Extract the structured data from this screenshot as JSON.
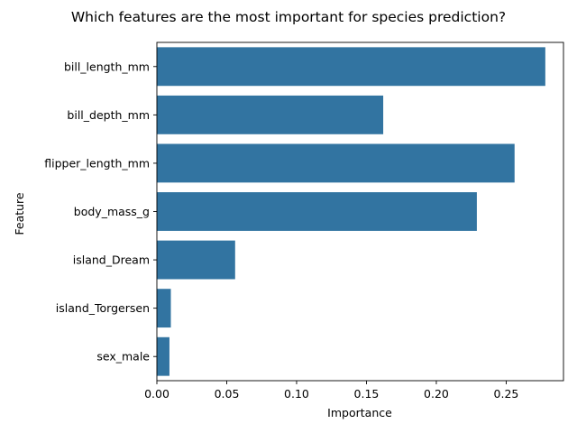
{
  "chart_data": {
    "type": "bar",
    "orientation": "horizontal",
    "title": "Which features are the most important for species prediction?",
    "xlabel": "Importance",
    "ylabel": "Feature",
    "categories": [
      "bill_length_mm",
      "bill_depth_mm",
      "flipper_length_mm",
      "body_mass_g",
      "island_Dream",
      "island_Torgersen",
      "sex_male"
    ],
    "values": [
      0.278,
      0.162,
      0.256,
      0.229,
      0.056,
      0.01,
      0.009
    ],
    "xlim": [
      0,
      0.291
    ],
    "xticks": [
      0,
      0.05,
      0.1,
      0.15,
      0.2,
      0.25
    ],
    "xtick_labels": [
      "0.00",
      "0.05",
      "0.10",
      "0.15",
      "0.20",
      "0.25"
    ],
    "bar_color": "#3274a1",
    "grid": false,
    "legend": "none"
  }
}
